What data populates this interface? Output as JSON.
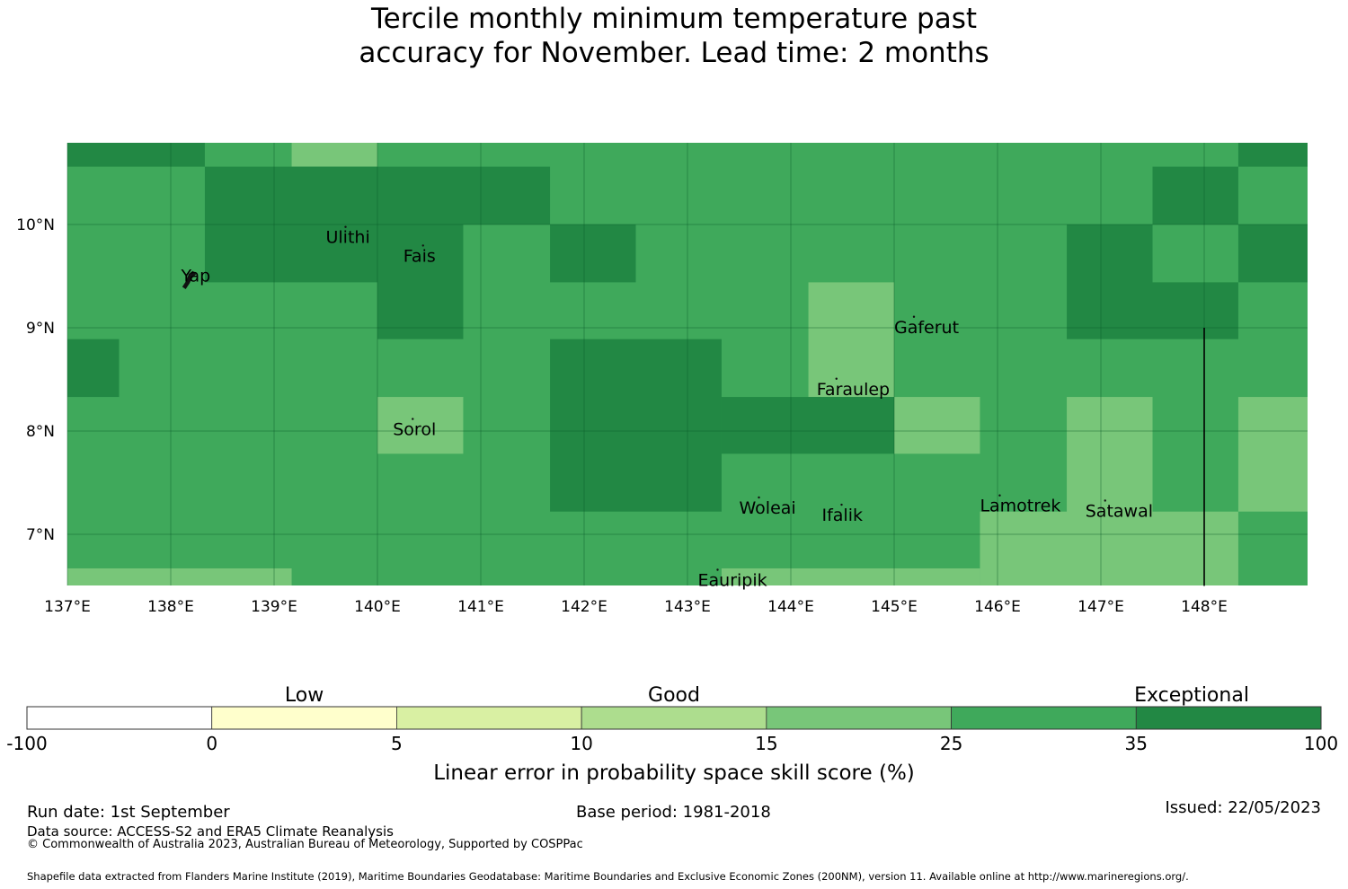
{
  "title": {
    "line1": "Tercile monthly minimum temperature past",
    "line2": "accuracy for November. Lead time: 2 months"
  },
  "map": {
    "lon_range": [
      137,
      149
    ],
    "lat_range": [
      6.5,
      10.8
    ],
    "x_ticks": [
      "137°E",
      "138°E",
      "139°E",
      "140°E",
      "141°E",
      "142°E",
      "143°E",
      "144°E",
      "145°E",
      "146°E",
      "147°E",
      "148°E"
    ],
    "y_ticks": [
      "10°N",
      "9°N",
      "8°N",
      "7°N"
    ],
    "grid_lines": true,
    "grid_color": "#0a5a2a",
    "boundary_line": {
      "lon": 148.0,
      "lat_from": 6.5,
      "lat_to": 9.0
    },
    "cell_colors": {
      "25-35": "#3fa95b",
      "35-100": "#228844",
      "15-25": "#78c679"
    },
    "cells": [
      {
        "lon": [
          137.0,
          138.33
        ],
        "lat": [
          10.56,
          10.8
        ],
        "cat": "35-100"
      },
      {
        "lon": [
          138.33,
          139.17
        ],
        "lat": [
          10.56,
          10.8
        ],
        "cat": "25-35"
      },
      {
        "lon": [
          139.17,
          140.0
        ],
        "lat": [
          10.56,
          10.8
        ],
        "cat": "15-25"
      },
      {
        "lon": [
          147.5,
          148.33
        ],
        "lat": [
          10.0,
          10.56
        ],
        "cat": "35-100"
      },
      {
        "lon": [
          148.33,
          149.0
        ],
        "lat": [
          10.56,
          10.8
        ],
        "cat": "35-100"
      },
      {
        "lon": [
          138.33,
          141.67
        ],
        "lat": [
          10.0,
          10.56
        ],
        "cat": "35-100"
      },
      {
        "lon": [
          138.33,
          140.0
        ],
        "lat": [
          9.44,
          10.0
        ],
        "cat": "35-100"
      },
      {
        "lon": [
          140.0,
          140.83
        ],
        "lat": [
          8.89,
          10.0
        ],
        "cat": "35-100"
      },
      {
        "lon": [
          141.67,
          142.5
        ],
        "lat": [
          9.44,
          10.0
        ],
        "cat": "35-100"
      },
      {
        "lon": [
          146.67,
          147.5
        ],
        "lat": [
          8.89,
          10.0
        ],
        "cat": "35-100"
      },
      {
        "lon": [
          147.5,
          148.33
        ],
        "lat": [
          8.89,
          9.44
        ],
        "cat": "35-100"
      },
      {
        "lon": [
          148.33,
          149.0
        ],
        "lat": [
          9.44,
          10.0
        ],
        "cat": "35-100"
      },
      {
        "lon": [
          144.17,
          145.0
        ],
        "lat": [
          8.33,
          9.44
        ],
        "cat": "15-25"
      },
      {
        "lon": [
          137.0,
          137.5
        ],
        "lat": [
          8.33,
          8.89
        ],
        "cat": "35-100"
      },
      {
        "lon": [
          141.67,
          143.33
        ],
        "lat": [
          7.22,
          8.89
        ],
        "cat": "35-100"
      },
      {
        "lon": [
          143.33,
          145.0
        ],
        "lat": [
          7.78,
          8.33
        ],
        "cat": "35-100"
      },
      {
        "lon": [
          140.0,
          140.83
        ],
        "lat": [
          7.78,
          8.33
        ],
        "cat": "15-25"
      },
      {
        "lon": [
          145.0,
          145.83
        ],
        "lat": [
          7.78,
          8.33
        ],
        "cat": "15-25"
      },
      {
        "lon": [
          146.67,
          147.5
        ],
        "lat": [
          6.67,
          8.33
        ],
        "cat": "15-25"
      },
      {
        "lon": [
          148.33,
          149.0
        ],
        "lat": [
          7.22,
          8.33
        ],
        "cat": "15-25"
      },
      {
        "lon": [
          145.83,
          148.33
        ],
        "lat": [
          6.5,
          7.22
        ],
        "cat": "15-25"
      },
      {
        "lon": [
          137.0,
          139.17
        ],
        "lat": [
          6.5,
          6.67
        ],
        "cat": "15-25"
      },
      {
        "lon": [
          143.33,
          145.83
        ],
        "lat": [
          6.5,
          6.67
        ],
        "cat": "15-25"
      }
    ],
    "places": [
      {
        "name": "Ulithi",
        "lon": 139.5,
        "lat": 9.82
      },
      {
        "name": "Fais",
        "lon": 140.25,
        "lat": 9.64
      },
      {
        "name": "Yap",
        "lon": 138.1,
        "lat": 9.45
      },
      {
        "name": "Gaferut",
        "lon": 145.0,
        "lat": 8.95
      },
      {
        "name": "Faraulep",
        "lon": 144.25,
        "lat": 8.35
      },
      {
        "name": "Sorol",
        "lon": 140.15,
        "lat": 7.96
      },
      {
        "name": "Woleai",
        "lon": 143.5,
        "lat": 7.2
      },
      {
        "name": "Ifalik",
        "lon": 144.3,
        "lat": 7.13
      },
      {
        "name": "Lamotrek",
        "lon": 145.83,
        "lat": 7.22
      },
      {
        "name": "Satawal",
        "lon": 146.85,
        "lat": 7.17
      },
      {
        "name": "Eauripik",
        "lon": 143.1,
        "lat": 6.5
      }
    ]
  },
  "colorbar": {
    "title": "Linear error in probability space skill score (%)",
    "categories": [
      "Low",
      "Good",
      "Exceptional"
    ],
    "tick_labels": [
      "-100",
      "0",
      "5",
      "10",
      "15",
      "25",
      "35",
      "100"
    ],
    "colors": [
      "#ffffff",
      "#ffffcc",
      "#d9f0a3",
      "#addd8e",
      "#78c679",
      "#3fa95b",
      "#228844"
    ]
  },
  "footer": {
    "run_date": "Run date: 1st September",
    "base_period": "Base period: 1981-2018",
    "issued": "Issued: 22/05/2023",
    "data_source": "Data source: ACCESS-S2 and ERA5 Climate Reanalysis",
    "copyright": "© Commonwealth of Australia 2023, Australian Bureau of Meteorology, Supported by COSPPac",
    "shapefile": "Shapefile data extracted from Flanders Marine Institute (2019), Maritime Boundaries Geodatabase: Maritime Boundaries and Exclusive Economic Zones (200NM), version 11. Available online at http://www.marineregions.org/."
  }
}
